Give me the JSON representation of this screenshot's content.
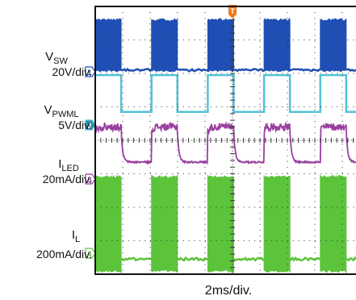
{
  "chart_data": {
    "type": "line",
    "title": "",
    "x_scale": {
      "label": "2ms/div.",
      "divisions": 10
    },
    "y_divisions": 8,
    "grid": true,
    "trigger_marker": {
      "label": "T",
      "color": "#f07a1a"
    },
    "pwm": {
      "period_divisions": 2.05,
      "high_fraction": 0.46,
      "first_rise_division": 0.0
    },
    "series": [
      {
        "name": "V",
        "subscript": "SW",
        "scale": "20V/div.",
        "channel": "1",
        "color": "#1f4fb4",
        "low_level_div": 6.1,
        "high_level_div": 7.1,
        "burst_band_div": [
          6.1,
          7.6
        ]
      },
      {
        "name": "V",
        "subscript": "PWML",
        "scale": "5V/div.",
        "channel": "2",
        "color": "#53c2d6",
        "low_level_div": 4.85,
        "high_level_div": 5.95
      },
      {
        "name": "I",
        "subscript": "LED",
        "scale": "20mA/div.",
        "channel": "3",
        "color": "#9a3fa0",
        "low_level_div": 3.35,
        "high_level_div": 4.4
      },
      {
        "name": "I",
        "subscript": "L",
        "scale": "200mA/div.",
        "channel": "4",
        "color": "#5cc43a",
        "low_level_div": 0.45,
        "burst_band_div": [
          0.05,
          2.95
        ]
      }
    ]
  }
}
